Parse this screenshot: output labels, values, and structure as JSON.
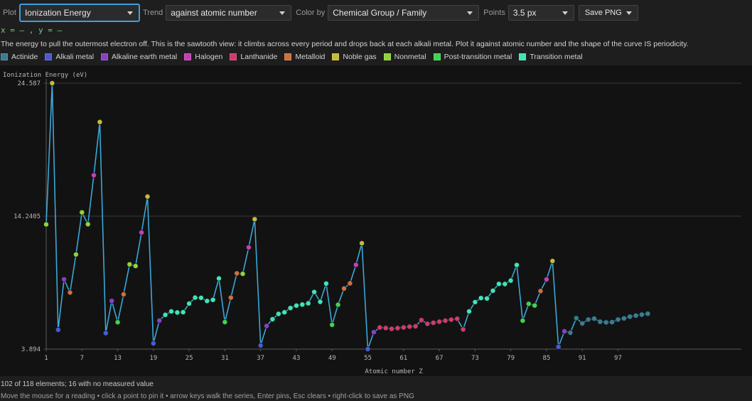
{
  "toolbar": {
    "plot_label": "Plot",
    "plot_value": "Ionization Energy",
    "trend_label": "Trend",
    "trend_value": "against atomic number",
    "color_label": "Color by",
    "color_value": "Chemical Group / Family",
    "points_label": "Points",
    "points_value": "3.5 px",
    "save_label": "Save PNG"
  },
  "readout": "x = — ,  y = —",
  "description": "The energy to pull the outermost electron off. This is the sawtooth view: it climbs across every period and drops back at each alkali metal. Plot it against atomic number and the shape of the curve IS periodicity.",
  "legend": [
    {
      "name": "Actinide",
      "color": "#3a7d93"
    },
    {
      "name": "Alkali metal",
      "color": "#4a5ad6"
    },
    {
      "name": "Alkaline earth metal",
      "color": "#8a3fc9"
    },
    {
      "name": "Halogen",
      "color": "#c43fb6"
    },
    {
      "name": "Lanthanide",
      "color": "#d13a6b"
    },
    {
      "name": "Metalloid",
      "color": "#d0703a"
    },
    {
      "name": "Noble gas",
      "color": "#c9b83a"
    },
    {
      "name": "Nonmetal",
      "color": "#8fd43a"
    },
    {
      "name": "Post-transition metal",
      "color": "#3ed451"
    },
    {
      "name": "Transition metal",
      "color": "#3ee6b4"
    }
  ],
  "status": {
    "count": "102 of 118 elements; 16 with no measured value",
    "hint": "Move the mouse for a reading • click a point to pin it • arrow keys walk the series, Enter pins, Esc clears • right-click to save as PNG"
  },
  "chart_data": {
    "type": "scatter",
    "xlabel": "Atomic number Z",
    "ylabel": "Ionization Energy (eV)",
    "xlim": [
      1,
      118
    ],
    "ylim": [
      3.894,
      24.587
    ],
    "yticks": [
      "3.894",
      "14.2405",
      "24.587"
    ],
    "xticks": [
      1,
      7,
      13,
      19,
      25,
      31,
      37,
      43,
      49,
      55,
      61,
      67,
      73,
      79,
      85,
      91,
      97
    ],
    "line_color": "#3aa8d8",
    "group_colors": {
      "Actinide": "#3a7d93",
      "Alkali metal": "#4a5ad6",
      "Alkaline earth metal": "#8a3fc9",
      "Halogen": "#c43fb6",
      "Lanthanide": "#d13a6b",
      "Metalloid": "#d0703a",
      "Noble gas": "#c9b83a",
      "Nonmetal": "#8fd43a",
      "Post-transition metal": "#3ed451",
      "Transition metal": "#3ee6b4"
    },
    "points": [
      [
        1,
        13.598,
        "Nonmetal"
      ],
      [
        2,
        24.587,
        "Noble gas"
      ],
      [
        3,
        5.392,
        "Alkali metal"
      ],
      [
        4,
        9.323,
        "Alkaline earth metal"
      ],
      [
        5,
        8.298,
        "Metalloid"
      ],
      [
        6,
        11.26,
        "Nonmetal"
      ],
      [
        7,
        14.534,
        "Nonmetal"
      ],
      [
        8,
        13.618,
        "Nonmetal"
      ],
      [
        9,
        17.423,
        "Halogen"
      ],
      [
        10,
        21.565,
        "Noble gas"
      ],
      [
        11,
        5.139,
        "Alkali metal"
      ],
      [
        12,
        7.646,
        "Alkaline earth metal"
      ],
      [
        13,
        5.986,
        "Post-transition metal"
      ],
      [
        14,
        8.152,
        "Metalloid"
      ],
      [
        15,
        10.487,
        "Nonmetal"
      ],
      [
        16,
        10.36,
        "Nonmetal"
      ],
      [
        17,
        12.968,
        "Halogen"
      ],
      [
        18,
        15.76,
        "Noble gas"
      ],
      [
        19,
        4.341,
        "Alkali metal"
      ],
      [
        20,
        6.113,
        "Alkaline earth metal"
      ],
      [
        21,
        6.561,
        "Transition metal"
      ],
      [
        22,
        6.828,
        "Transition metal"
      ],
      [
        23,
        6.746,
        "Transition metal"
      ],
      [
        24,
        6.767,
        "Transition metal"
      ],
      [
        25,
        7.434,
        "Transition metal"
      ],
      [
        26,
        7.902,
        "Transition metal"
      ],
      [
        27,
        7.881,
        "Transition metal"
      ],
      [
        28,
        7.64,
        "Transition metal"
      ],
      [
        29,
        7.726,
        "Transition metal"
      ],
      [
        30,
        9.394,
        "Transition metal"
      ],
      [
        31,
        5.999,
        "Post-transition metal"
      ],
      [
        32,
        7.9,
        "Metalloid"
      ],
      [
        33,
        9.789,
        "Metalloid"
      ],
      [
        34,
        9.752,
        "Nonmetal"
      ],
      [
        35,
        11.814,
        "Halogen"
      ],
      [
        36,
        14.0,
        "Noble gas"
      ],
      [
        37,
        4.177,
        "Alkali metal"
      ],
      [
        38,
        5.695,
        "Alkaline earth metal"
      ],
      [
        39,
        6.217,
        "Transition metal"
      ],
      [
        40,
        6.634,
        "Transition metal"
      ],
      [
        41,
        6.759,
        "Transition metal"
      ],
      [
        42,
        7.092,
        "Transition metal"
      ],
      [
        43,
        7.28,
        "Transition metal"
      ],
      [
        44,
        7.361,
        "Transition metal"
      ],
      [
        45,
        7.459,
        "Transition metal"
      ],
      [
        46,
        8.337,
        "Transition metal"
      ],
      [
        47,
        7.576,
        "Transition metal"
      ],
      [
        48,
        8.994,
        "Transition metal"
      ],
      [
        49,
        5.786,
        "Post-transition metal"
      ],
      [
        50,
        7.344,
        "Post-transition metal"
      ],
      [
        51,
        8.608,
        "Metalloid"
      ],
      [
        52,
        9.01,
        "Metalloid"
      ],
      [
        53,
        10.451,
        "Halogen"
      ],
      [
        54,
        12.13,
        "Noble gas"
      ],
      [
        55,
        3.894,
        "Alkali metal"
      ],
      [
        56,
        5.212,
        "Alkaline earth metal"
      ],
      [
        57,
        5.577,
        "Lanthanide"
      ],
      [
        58,
        5.539,
        "Lanthanide"
      ],
      [
        59,
        5.473,
        "Lanthanide"
      ],
      [
        60,
        5.525,
        "Lanthanide"
      ],
      [
        61,
        5.582,
        "Lanthanide"
      ],
      [
        62,
        5.644,
        "Lanthanide"
      ],
      [
        63,
        5.67,
        "Lanthanide"
      ],
      [
        64,
        6.15,
        "Lanthanide"
      ],
      [
        65,
        5.864,
        "Lanthanide"
      ],
      [
        66,
        5.939,
        "Lanthanide"
      ],
      [
        67,
        6.022,
        "Lanthanide"
      ],
      [
        68,
        6.108,
        "Lanthanide"
      ],
      [
        69,
        6.184,
        "Lanthanide"
      ],
      [
        70,
        6.254,
        "Lanthanide"
      ],
      [
        71,
        5.426,
        "Lanthanide"
      ],
      [
        72,
        6.825,
        "Transition metal"
      ],
      [
        73,
        7.55,
        "Transition metal"
      ],
      [
        74,
        7.864,
        "Transition metal"
      ],
      [
        75,
        7.834,
        "Transition metal"
      ],
      [
        76,
        8.438,
        "Transition metal"
      ],
      [
        77,
        8.967,
        "Transition metal"
      ],
      [
        78,
        8.959,
        "Transition metal"
      ],
      [
        79,
        9.226,
        "Transition metal"
      ],
      [
        80,
        10.438,
        "Transition metal"
      ],
      [
        81,
        6.108,
        "Post-transition metal"
      ],
      [
        82,
        7.417,
        "Post-transition metal"
      ],
      [
        83,
        7.286,
        "Post-transition metal"
      ],
      [
        84,
        8.414,
        "Metalloid"
      ],
      [
        85,
        9.318,
        "Halogen"
      ],
      [
        86,
        10.749,
        "Noble gas"
      ],
      [
        87,
        4.073,
        "Alkali metal"
      ],
      [
        88,
        5.278,
        "Alkaline earth metal"
      ],
      [
        89,
        5.17,
        "Actinide"
      ],
      [
        90,
        6.307,
        "Actinide"
      ],
      [
        91,
        5.89,
        "Actinide"
      ],
      [
        92,
        6.194,
        "Actinide"
      ],
      [
        93,
        6.266,
        "Actinide"
      ],
      [
        94,
        6.026,
        "Actinide"
      ],
      [
        95,
        5.974,
        "Actinide"
      ],
      [
        96,
        5.992,
        "Actinide"
      ],
      [
        97,
        6.198,
        "Actinide"
      ],
      [
        98,
        6.282,
        "Actinide"
      ],
      [
        99,
        6.42,
        "Actinide"
      ],
      [
        100,
        6.5,
        "Actinide"
      ],
      [
        101,
        6.58,
        "Actinide"
      ],
      [
        102,
        6.65,
        "Actinide"
      ]
    ]
  }
}
